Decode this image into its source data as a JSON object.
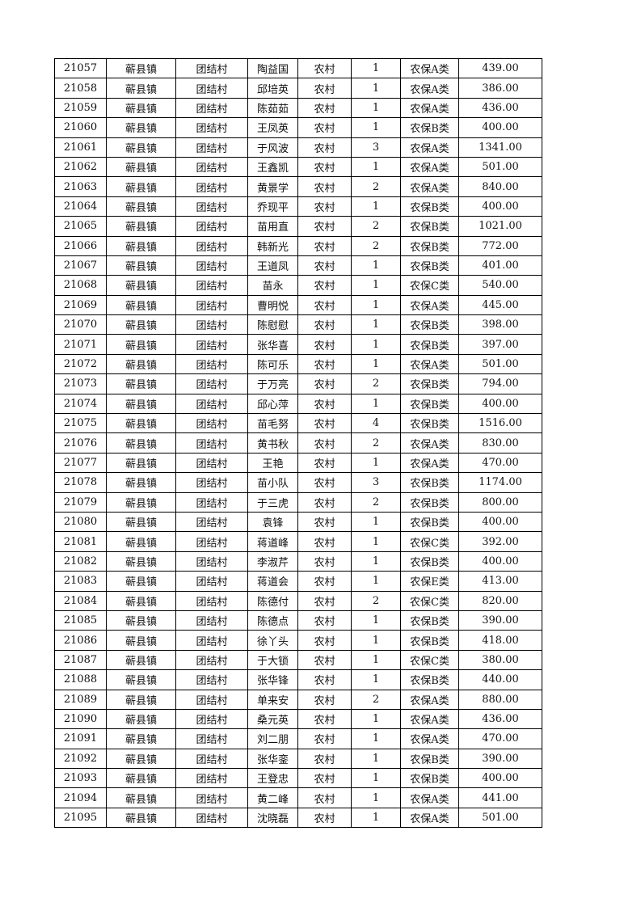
{
  "rows": [
    [
      "21057",
      "蕲县镇",
      "团结村",
      "陶益国",
      "农村",
      "1",
      "农保A类",
      "439.00"
    ],
    [
      "21058",
      "蕲县镇",
      "团结村",
      "邱培英",
      "农村",
      "1",
      "农保A类",
      "386.00"
    ],
    [
      "21059",
      "蕲县镇",
      "团结村",
      "陈茹茹",
      "农村",
      "1",
      "农保A类",
      "436.00"
    ],
    [
      "21060",
      "蕲县镇",
      "团结村",
      "王凤英",
      "农村",
      "1",
      "农保B类",
      "400.00"
    ],
    [
      "21061",
      "蕲县镇",
      "团结村",
      "于风波",
      "农村",
      "3",
      "农保A类",
      "1341.00"
    ],
    [
      "21062",
      "蕲县镇",
      "团结村",
      "王鑫凯",
      "农村",
      "1",
      "农保A类",
      "501.00"
    ],
    [
      "21063",
      "蕲县镇",
      "团结村",
      "黄景学",
      "农村",
      "2",
      "农保A类",
      "840.00"
    ],
    [
      "21064",
      "蕲县镇",
      "团结村",
      "乔现平",
      "农村",
      "1",
      "农保B类",
      "400.00"
    ],
    [
      "21065",
      "蕲县镇",
      "团结村",
      "苗用直",
      "农村",
      "2",
      "农保B类",
      "1021.00"
    ],
    [
      "21066",
      "蕲县镇",
      "团结村",
      "韩新光",
      "农村",
      "2",
      "农保B类",
      "772.00"
    ],
    [
      "21067",
      "蕲县镇",
      "团结村",
      "王道凤",
      "农村",
      "1",
      "农保B类",
      "401.00"
    ],
    [
      "21068",
      "蕲县镇",
      "团结村",
      "苗永",
      "农村",
      "1",
      "农保C类",
      "540.00"
    ],
    [
      "21069",
      "蕲县镇",
      "团结村",
      "曹明悦",
      "农村",
      "1",
      "农保A类",
      "445.00"
    ],
    [
      "21070",
      "蕲县镇",
      "团结村",
      "陈慰慰",
      "农村",
      "1",
      "农保B类",
      "398.00"
    ],
    [
      "21071",
      "蕲县镇",
      "团结村",
      "张华喜",
      "农村",
      "1",
      "农保B类",
      "397.00"
    ],
    [
      "21072",
      "蕲县镇",
      "团结村",
      "陈可乐",
      "农村",
      "1",
      "农保A类",
      "501.00"
    ],
    [
      "21073",
      "蕲县镇",
      "团结村",
      "于万亮",
      "农村",
      "2",
      "农保B类",
      "794.00"
    ],
    [
      "21074",
      "蕲县镇",
      "团结村",
      "邱心萍",
      "农村",
      "1",
      "农保B类",
      "400.00"
    ],
    [
      "21075",
      "蕲县镇",
      "团结村",
      "苗毛努",
      "农村",
      "4",
      "农保B类",
      "1516.00"
    ],
    [
      "21076",
      "蕲县镇",
      "团结村",
      "黄书秋",
      "农村",
      "2",
      "农保A类",
      "830.00"
    ],
    [
      "21077",
      "蕲县镇",
      "团结村",
      "王艳",
      "农村",
      "1",
      "农保A类",
      "470.00"
    ],
    [
      "21078",
      "蕲县镇",
      "团结村",
      "苗小队",
      "农村",
      "3",
      "农保B类",
      "1174.00"
    ],
    [
      "21079",
      "蕲县镇",
      "团结村",
      "于三虎",
      "农村",
      "2",
      "农保B类",
      "800.00"
    ],
    [
      "21080",
      "蕲县镇",
      "团结村",
      "袁锋",
      "农村",
      "1",
      "农保B类",
      "400.00"
    ],
    [
      "21081",
      "蕲县镇",
      "团结村",
      "蒋道峰",
      "农村",
      "1",
      "农保C类",
      "392.00"
    ],
    [
      "21082",
      "蕲县镇",
      "团结村",
      "李淑芹",
      "农村",
      "1",
      "农保B类",
      "400.00"
    ],
    [
      "21083",
      "蕲县镇",
      "团结村",
      "蒋道会",
      "农村",
      "1",
      "农保E类",
      "413.00"
    ],
    [
      "21084",
      "蕲县镇",
      "团结村",
      "陈德付",
      "农村",
      "2",
      "农保C类",
      "820.00"
    ],
    [
      "21085",
      "蕲县镇",
      "团结村",
      "陈德点",
      "农村",
      "1",
      "农保B类",
      "390.00"
    ],
    [
      "21086",
      "蕲县镇",
      "团结村",
      "徐丫头",
      "农村",
      "1",
      "农保B类",
      "418.00"
    ],
    [
      "21087",
      "蕲县镇",
      "团结村",
      "于大锁",
      "农村",
      "1",
      "农保C类",
      "380.00"
    ],
    [
      "21088",
      "蕲县镇",
      "团结村",
      "张华锋",
      "农村",
      "1",
      "农保B类",
      "440.00"
    ],
    [
      "21089",
      "蕲县镇",
      "团结村",
      "单来安",
      "农村",
      "2",
      "农保A类",
      "880.00"
    ],
    [
      "21090",
      "蕲县镇",
      "团结村",
      "桑元英",
      "农村",
      "1",
      "农保A类",
      "436.00"
    ],
    [
      "21091",
      "蕲县镇",
      "团结村",
      "刘二朋",
      "农村",
      "1",
      "农保A类",
      "470.00"
    ],
    [
      "21092",
      "蕲县镇",
      "团结村",
      "张华銮",
      "农村",
      "1",
      "农保B类",
      "390.00"
    ],
    [
      "21093",
      "蕲县镇",
      "团结村",
      "王登忠",
      "农村",
      "1",
      "农保B类",
      "400.00"
    ],
    [
      "21094",
      "蕲县镇",
      "团结村",
      "黄二峰",
      "农村",
      "1",
      "农保A类",
      "441.00"
    ],
    [
      "21095",
      "蕲县镇",
      "团结村",
      "沈晓磊",
      "农村",
      "1",
      "农保A类",
      "501.00"
    ]
  ]
}
